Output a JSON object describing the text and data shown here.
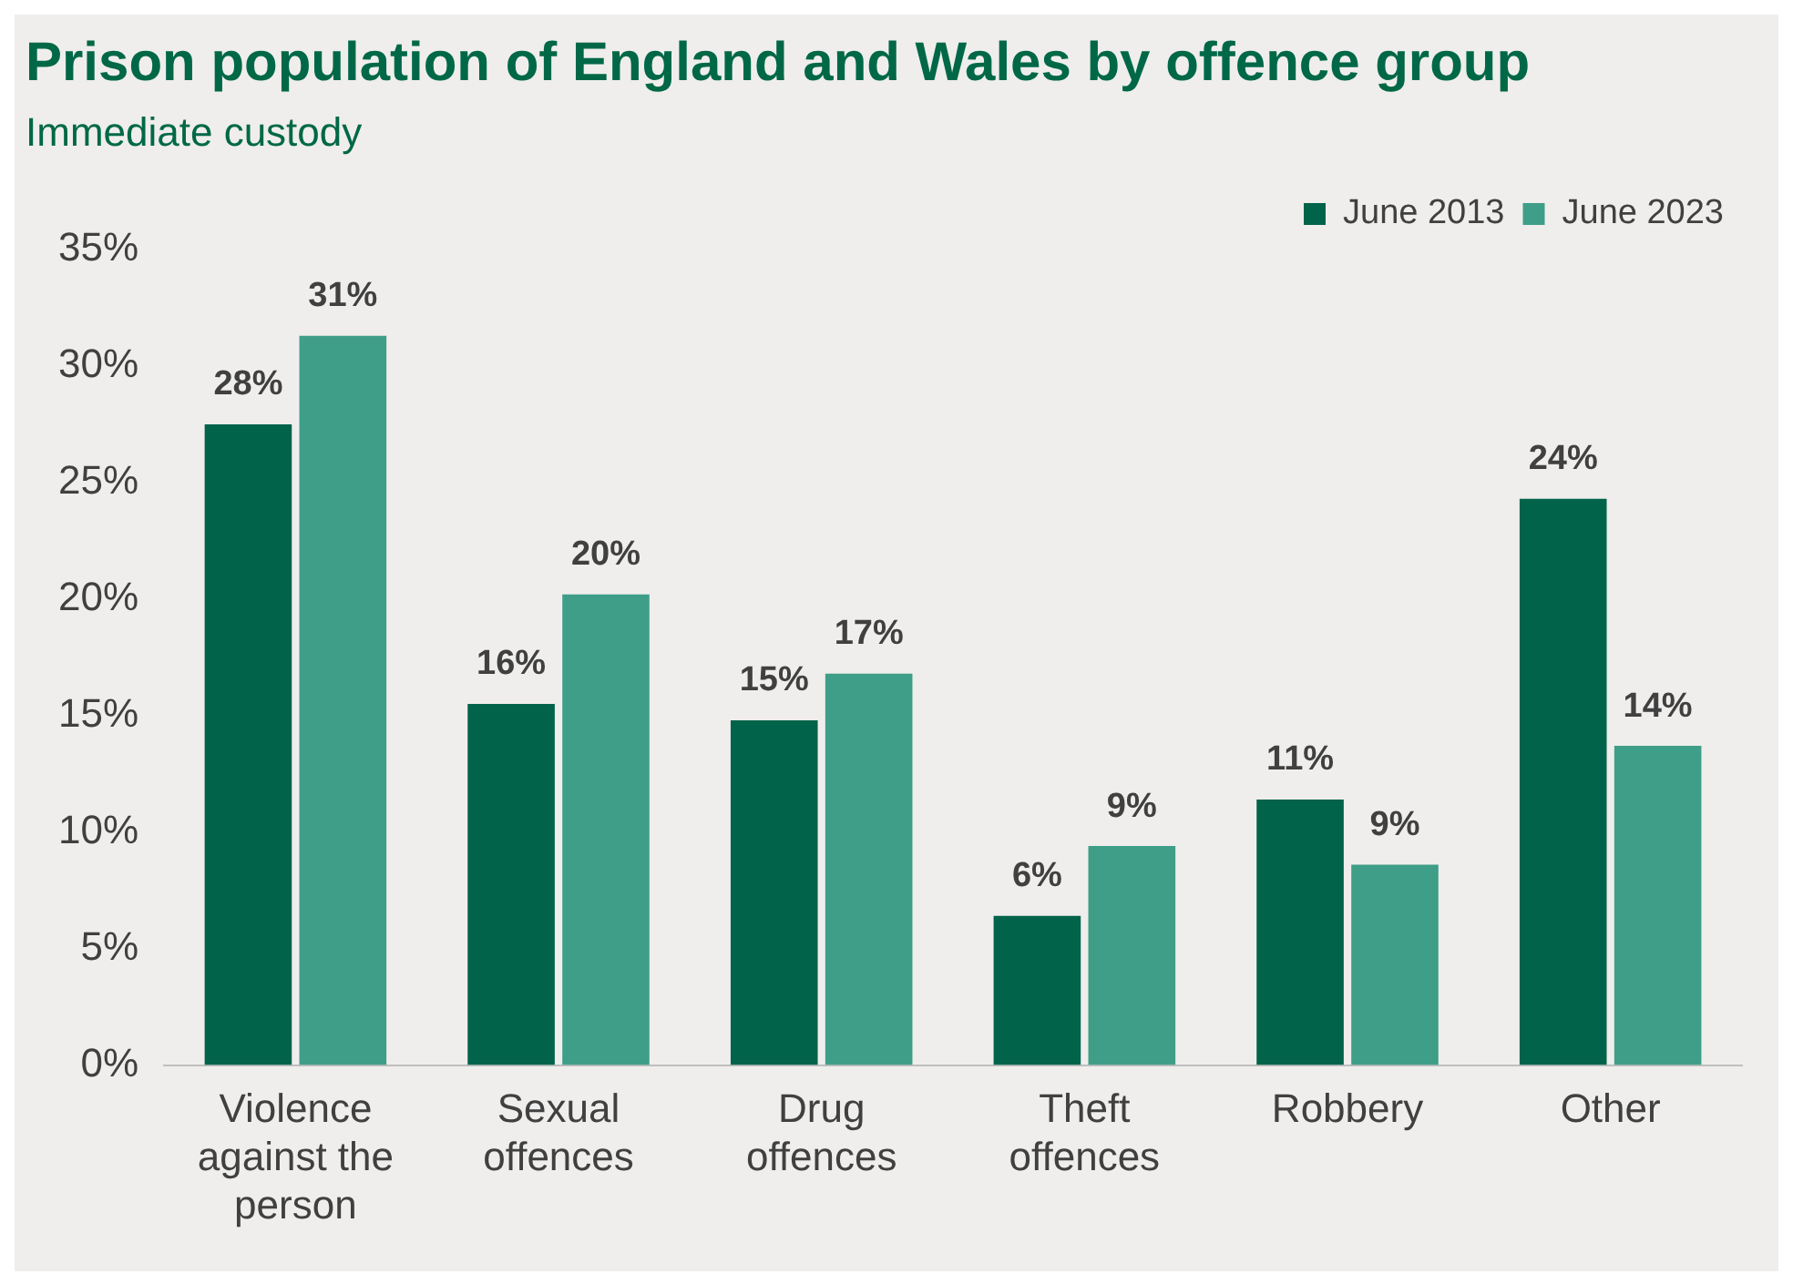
{
  "chart_data": {
    "type": "bar",
    "title": "Prison population of England and Wales by offence group",
    "subtitle": "Immediate custody",
    "categories": [
      "Violence against the person",
      "Sexual offences",
      "Drug offences",
      "Theft offences",
      "Robbery",
      "Other"
    ],
    "series": [
      {
        "name": "June 2013",
        "color": "#00634a",
        "values": [
          27.5,
          15.5,
          14.8,
          6.4,
          11.4,
          24.3
        ],
        "value_labels": [
          "28%",
          "16%",
          "15%",
          "6%",
          "11%",
          "24%"
        ]
      },
      {
        "name": "June 2023",
        "color": "#3f9e88",
        "values": [
          31.3,
          20.2,
          16.8,
          9.4,
          8.6,
          13.7
        ],
        "value_labels": [
          "31%",
          "20%",
          "17%",
          "9%",
          "9%",
          "14%"
        ]
      }
    ],
    "ylim": [
      0,
      35
    ],
    "yticks": [
      {
        "value": 0,
        "label": "0%"
      },
      {
        "value": 5,
        "label": "5%"
      },
      {
        "value": 10,
        "label": "10%"
      },
      {
        "value": 15,
        "label": "15%"
      },
      {
        "value": 20,
        "label": "20%"
      },
      {
        "value": 25,
        "label": "25%"
      },
      {
        "value": 30,
        "label": "30%"
      },
      {
        "value": 35,
        "label": "35%"
      }
    ],
    "grid": false,
    "legend": "top right"
  }
}
